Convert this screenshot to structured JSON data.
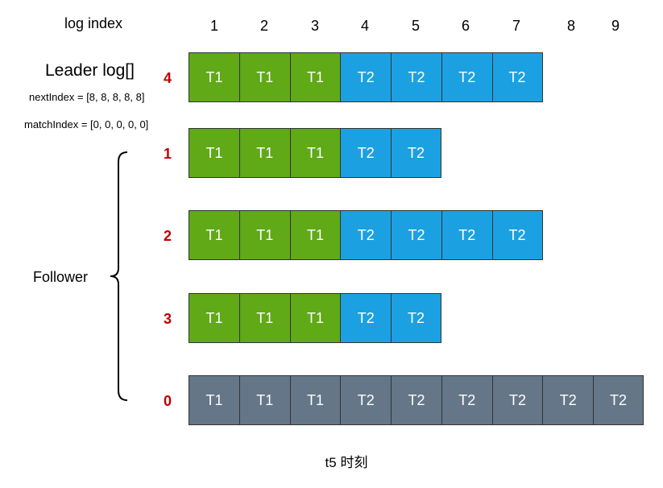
{
  "labels": {
    "log_index": "log index",
    "leader_log": "Leader log[]",
    "next_index": "nextIndex = [8, 8, 8, 8, 8]",
    "match_index": "matchIndex = [0, 0, 0, 0, 0]",
    "follower": "Follower",
    "caption": "t5 时刻"
  },
  "index_numbers": [
    "1",
    "2",
    "3",
    "4",
    "5",
    "6",
    "7",
    "8",
    "9"
  ],
  "term_colors": {
    "T1": "#60a917",
    "T2": "#1ba1e2",
    "gray": "#647687"
  },
  "rows": [
    {
      "node": "4",
      "role": "leader",
      "cells": [
        "T1",
        "T1",
        "T1",
        "T2",
        "T2",
        "T2",
        "T2"
      ]
    },
    {
      "node": "1",
      "role": "follower",
      "cells": [
        "T1",
        "T1",
        "T1",
        "T2",
        "T2"
      ]
    },
    {
      "node": "2",
      "role": "follower",
      "cells": [
        "T1",
        "T1",
        "T1",
        "T2",
        "T2",
        "T2",
        "T2"
      ]
    },
    {
      "node": "3",
      "role": "follower",
      "cells": [
        "T1",
        "T1",
        "T1",
        "T2",
        "T2"
      ]
    },
    {
      "node": "0",
      "role": "follower-gray",
      "cells": [
        "T1",
        "T1",
        "T1",
        "T2",
        "T2",
        "T2",
        "T2",
        "T2",
        "T2"
      ]
    }
  ]
}
